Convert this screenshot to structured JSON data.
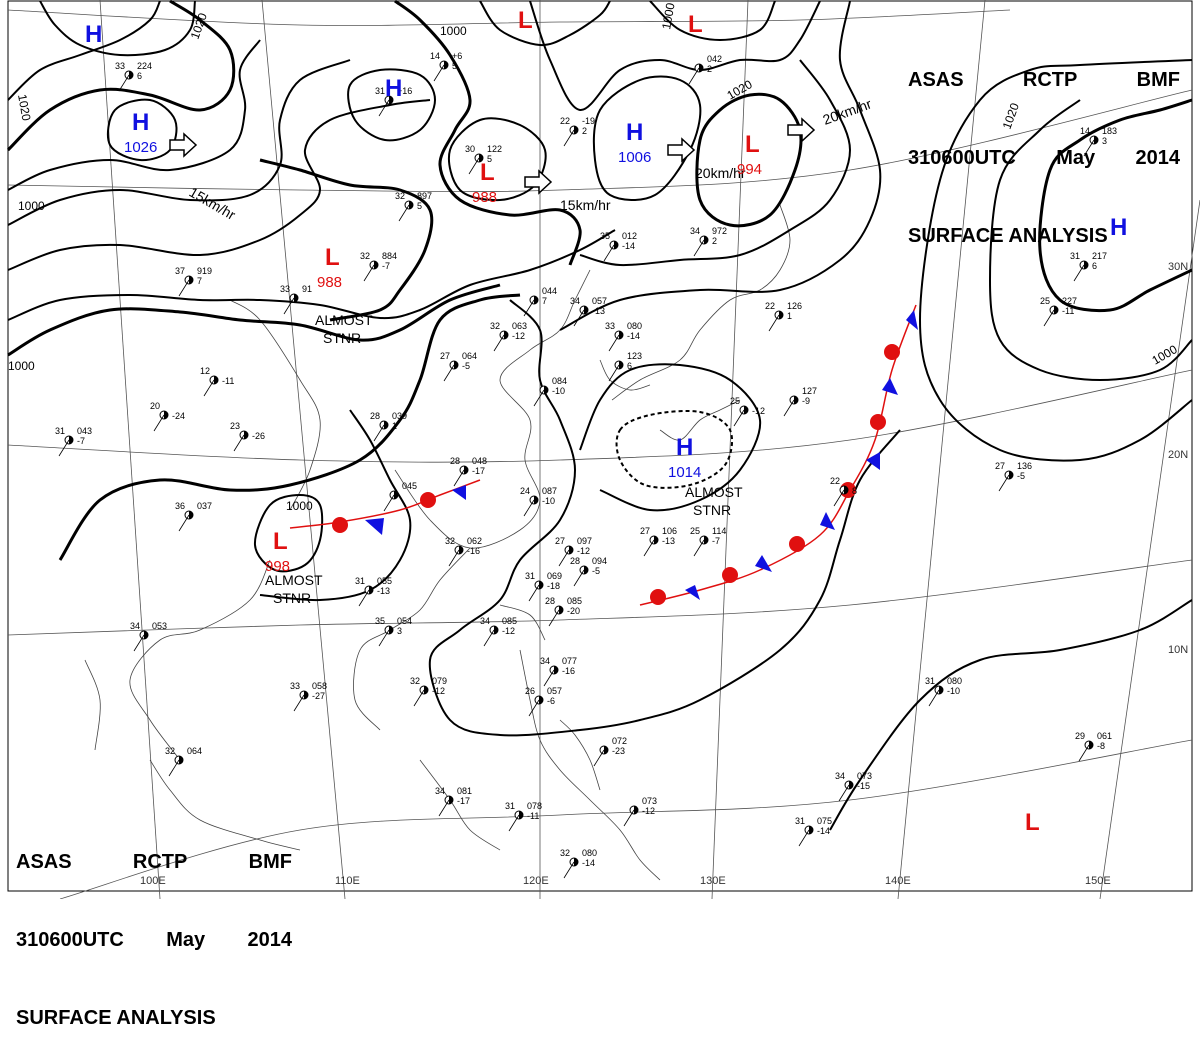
{
  "header": {
    "line1": [
      "ASAS",
      "RCTP",
      "BMF"
    ],
    "line2": [
      "310600UTC",
      "May",
      "2014"
    ],
    "line3": "SURFACE ANALYSIS"
  },
  "colors": {
    "high": "#1010e0",
    "low": "#e01010",
    "isobar": "#000000",
    "grid": "#555555",
    "coast": "#444444",
    "warm_front": "#e01010",
    "cold_front": "#1010e0"
  },
  "graticule": {
    "longitudes": [
      "100E",
      "110E",
      "120E",
      "130E",
      "140E",
      "150E"
    ],
    "latitudes": [
      "10N",
      "20N",
      "30N"
    ]
  },
  "pressure_centers": [
    {
      "type": "H",
      "pressure": ""
    },
    {
      "type": "H",
      "pressure": "1026"
    },
    {
      "type": "H",
      "pressure": ""
    },
    {
      "type": "L",
      "pressure": "988"
    },
    {
      "type": "L",
      "pressure": "988"
    },
    {
      "type": "L",
      "pressure": ""
    },
    {
      "type": "L",
      "pressure": ""
    },
    {
      "type": "H",
      "pressure": "1006"
    },
    {
      "type": "L",
      "pressure": "994"
    },
    {
      "type": "H",
      "pressure": ""
    },
    {
      "type": "H",
      "pressure": "1014"
    },
    {
      "type": "L",
      "pressure": "998"
    },
    {
      "type": "L",
      "pressure": ""
    }
  ],
  "isobar_labels": [
    "1020",
    "1020",
    "1000",
    "1000",
    "1000",
    "1000",
    "1000",
    "1020",
    "1020",
    "1000"
  ],
  "motion_labels": [
    "15km/hr",
    "15km/hr",
    "20km/hr",
    "20km/hr"
  ],
  "annotations": [
    {
      "line1": "ALMOST",
      "line2": "STNR"
    },
    {
      "line1": "ALMOST",
      "line2": "STNR"
    },
    {
      "line1": "ALMOST",
      "line2": "STNR"
    }
  ],
  "station_reports": [
    {
      "temp": "33",
      "pres": "224",
      "tend": "6"
    },
    {
      "temp": "31",
      "pres": "+16",
      "tend": ""
    },
    {
      "temp": "14",
      "pres": "+6",
      "tend": "5"
    },
    {
      "temp": "22",
      "pres": "-19",
      "tend": "2"
    },
    {
      "temp": "30",
      "pres": "122",
      "tend": "5"
    },
    {
      "temp": "",
      "pres": "042",
      "tend": "2"
    },
    {
      "temp": "14",
      "pres": "183",
      "tend": "3"
    },
    {
      "temp": "35",
      "pres": "012",
      "tend": "-14"
    },
    {
      "temp": "34",
      "pres": "972",
      "tend": "2"
    },
    {
      "temp": "22",
      "pres": "126",
      "tend": "1"
    },
    {
      "temp": "32",
      "pres": "884",
      "tend": "-7"
    },
    {
      "temp": "32",
      "pres": "897",
      "tend": "5"
    },
    {
      "temp": "37",
      "pres": "919",
      "tend": "7"
    },
    {
      "temp": "33",
      "pres": "91",
      "tend": ""
    },
    {
      "temp": "31",
      "pres": "217",
      "tend": "6"
    },
    {
      "temp": "25",
      "pres": "227",
      "tend": "-11"
    },
    {
      "temp": "",
      "pres": "044",
      "tend": "7"
    },
    {
      "temp": "34",
      "pres": "057",
      "tend": "-13"
    },
    {
      "temp": "32",
      "pres": "063",
      "tend": "-12"
    },
    {
      "temp": "27",
      "pres": "064",
      "tend": "-5"
    },
    {
      "temp": "12",
      "pres": "",
      "tend": "-11"
    },
    {
      "temp": "20",
      "pres": "",
      "tend": "-24"
    },
    {
      "temp": "23",
      "pres": "",
      "tend": "-26"
    },
    {
      "temp": "31",
      "pres": "043",
      "tend": "-7"
    },
    {
      "temp": "28",
      "pres": "039",
      "tend": "1"
    },
    {
      "temp": "28",
      "pres": "048",
      "tend": "-17"
    },
    {
      "temp": "24",
      "pres": "087",
      "tend": "-10"
    },
    {
      "temp": "",
      "pres": "084",
      "tend": "-10"
    },
    {
      "temp": "33",
      "pres": "080",
      "tend": "-14"
    },
    {
      "temp": "",
      "pres": "123",
      "tend": "6"
    },
    {
      "temp": "",
      "pres": "127",
      "tend": "-9"
    },
    {
      "temp": "25",
      "pres": "",
      "tend": "-12"
    },
    {
      "temp": "27",
      "pres": "136",
      "tend": "-5"
    },
    {
      "temp": "22",
      "pres": "",
      "tend": "8"
    },
    {
      "temp": "36",
      "pres": "037",
      "tend": ""
    },
    {
      "temp": "",
      "pres": "045",
      "tend": ""
    },
    {
      "temp": "32",
      "pres": "062",
      "tend": "-16"
    },
    {
      "temp": "27",
      "pres": "097",
      "tend": "-12"
    },
    {
      "temp": "27",
      "pres": "106",
      "tend": "-13"
    },
    {
      "temp": "25",
      "pres": "114",
      "tend": "-7"
    },
    {
      "temp": "31",
      "pres": "055",
      "tend": "-13"
    },
    {
      "temp": "31",
      "pres": "069",
      "tend": "-18"
    },
    {
      "temp": "28",
      "pres": "094",
      "tend": "-5"
    },
    {
      "temp": "28",
      "pres": "085",
      "tend": "-20"
    },
    {
      "temp": "35",
      "pres": "054",
      "tend": "3"
    },
    {
      "temp": "34",
      "pres": "053",
      "tend": ""
    },
    {
      "temp": "34",
      "pres": "085",
      "tend": "-12"
    },
    {
      "temp": "33",
      "pres": "058",
      "tend": "-27"
    },
    {
      "temp": "32",
      "pres": "079",
      "tend": "-12"
    },
    {
      "temp": "34",
      "pres": "077",
      "tend": "-16"
    },
    {
      "temp": "26",
      "pres": "057",
      "tend": "-6"
    },
    {
      "temp": "32",
      "pres": "064",
      "tend": ""
    },
    {
      "temp": "",
      "pres": "072",
      "tend": "-23"
    },
    {
      "temp": "31",
      "pres": "080",
      "tend": "-10"
    },
    {
      "temp": "29",
      "pres": "061",
      "tend": "-8"
    },
    {
      "temp": "34",
      "pres": "081",
      "tend": "-17"
    },
    {
      "temp": "31",
      "pres": "078",
      "tend": "-11"
    },
    {
      "temp": "",
      "pres": "073",
      "tend": "-12"
    },
    {
      "temp": "34",
      "pres": "073",
      "tend": "-15"
    },
    {
      "temp": "31",
      "pres": "075",
      "tend": "-14"
    },
    {
      "temp": "32",
      "pres": "080",
      "tend": "-14"
    }
  ]
}
